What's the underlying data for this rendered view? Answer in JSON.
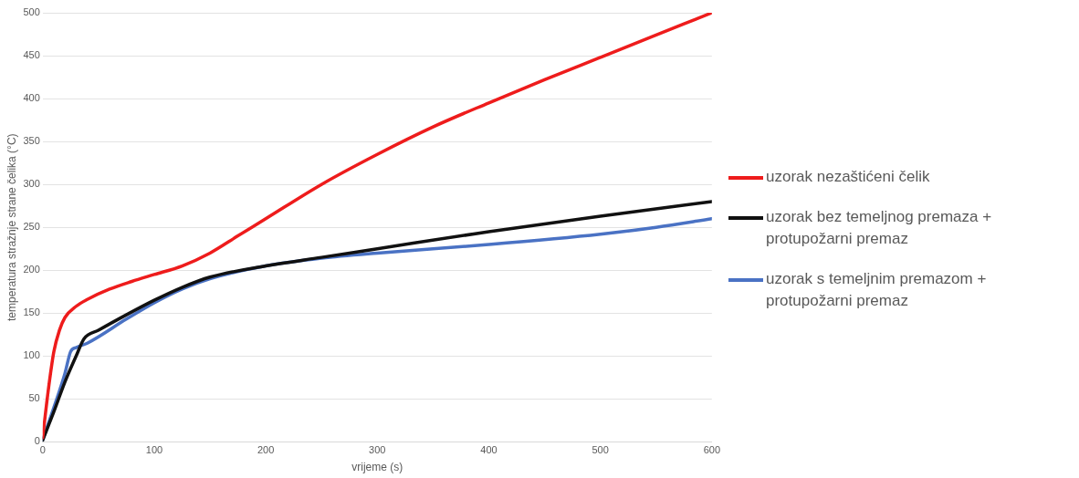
{
  "chart_data": {
    "type": "line",
    "xlabel": "vrijeme (s)",
    "ylabel": "temperatura stražnje strane čelika (°C)",
    "xlim": [
      0,
      600
    ],
    "xticks": [
      0,
      100,
      200,
      300,
      400,
      500,
      600
    ],
    "ylim": [
      0,
      500
    ],
    "yticks": [
      0,
      50,
      100,
      150,
      200,
      250,
      300,
      350,
      400,
      450,
      500
    ],
    "grid": "y",
    "legend": "right",
    "marker": "none",
    "line_style": "solid",
    "series": [
      {
        "name": "uzorak nezaštićeni čelik",
        "color": "#ee1c1c",
        "x": [
          0,
          5,
          10,
          15,
          20,
          30,
          40,
          60,
          80,
          100,
          125,
          150,
          175,
          200,
          250,
          300,
          350,
          400,
          450,
          500,
          550,
          600
        ],
        "values": [
          5,
          60,
          105,
          130,
          145,
          158,
          166,
          178,
          187,
          195,
          205,
          220,
          240,
          260,
          300,
          335,
          367,
          395,
          422,
          448,
          474,
          500
        ]
      },
      {
        "name": "uzorak bez temeljnog premaza + protupožarni premaz",
        "color": "#111111",
        "x": [
          0,
          10,
          20,
          30,
          37,
          50,
          75,
          100,
          125,
          150,
          200,
          250,
          300,
          400,
          500,
          600
        ],
        "values": [
          2,
          35,
          70,
          100,
          120,
          130,
          148,
          165,
          180,
          192,
          205,
          215,
          225,
          245,
          263,
          280
        ]
      },
      {
        "name": "uzorak s temeljnim premazom + protupožarni premaz",
        "color": "#4a72c4",
        "x": [
          0,
          10,
          20,
          25,
          30,
          40,
          75,
          100,
          125,
          150,
          200,
          250,
          300,
          400,
          500,
          550,
          600
        ],
        "values": [
          2,
          40,
          80,
          105,
          110,
          115,
          143,
          162,
          178,
          190,
          205,
          214,
          220,
          230,
          242,
          250,
          260
        ]
      }
    ]
  }
}
